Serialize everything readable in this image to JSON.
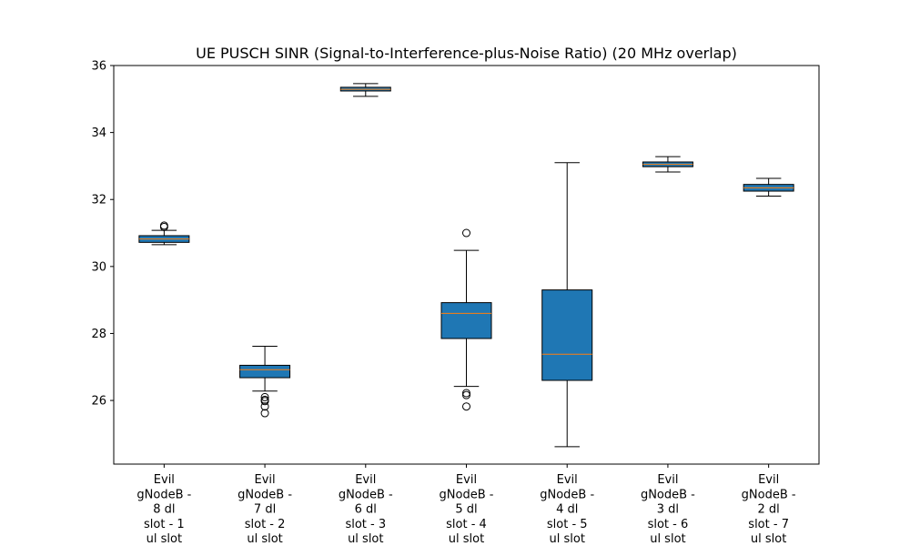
{
  "chart_data": {
    "type": "box",
    "title": "UE PUSCH SINR (Signal-to-Interference-plus-Noise Ratio) (20 MHz overlap)",
    "xlabel": "",
    "ylabel": "",
    "ylim": [
      24.1,
      36
    ],
    "yticks": [
      26,
      28,
      30,
      32,
      34,
      36
    ],
    "grid": false,
    "box_color": "#1f77b4",
    "median_color": "#ff7f0e",
    "categories": [
      [
        "Evil",
        "gNodeB -",
        "8 dl",
        "slot - 1",
        "ul slot"
      ],
      [
        "Evil",
        "gNodeB -",
        "7 dl",
        "slot - 2",
        "ul slot"
      ],
      [
        "Evil",
        "gNodeB -",
        "6 dl",
        "slot - 3",
        "ul slot"
      ],
      [
        "Evil",
        "gNodeB -",
        "5 dl",
        "slot - 4",
        "ul slot"
      ],
      [
        "Evil",
        "gNodeB -",
        "4 dl",
        "slot - 5",
        "ul slot"
      ],
      [
        "Evil",
        "gNodeB -",
        "3 dl",
        "slot - 6",
        "ul slot"
      ],
      [
        "Evil",
        "gNodeB -",
        "2 dl",
        "slot - 7",
        "ul slot"
      ]
    ],
    "boxes": [
      {
        "whislo": 30.65,
        "q1": 30.72,
        "med": 30.82,
        "q3": 30.92,
        "whishi": 31.08,
        "fliers": [
          31.18,
          31.22
        ]
      },
      {
        "whislo": 26.28,
        "q1": 26.68,
        "med": 26.92,
        "q3": 27.05,
        "whishi": 27.62,
        "fliers": [
          26.1,
          26.02,
          25.98,
          25.82,
          25.62
        ]
      },
      {
        "whislo": 35.08,
        "q1": 35.24,
        "med": 35.29,
        "q3": 35.35,
        "whishi": 35.46,
        "fliers": []
      },
      {
        "whislo": 26.42,
        "q1": 27.85,
        "med": 28.6,
        "q3": 28.92,
        "whishi": 30.48,
        "fliers": [
          31.0,
          26.22,
          26.16,
          25.82
        ]
      },
      {
        "whislo": 24.62,
        "q1": 26.6,
        "med": 27.38,
        "q3": 29.3,
        "whishi": 33.1,
        "fliers": []
      },
      {
        "whislo": 32.82,
        "q1": 32.98,
        "med": 33.05,
        "q3": 33.12,
        "whishi": 33.28,
        "fliers": []
      },
      {
        "whislo": 32.1,
        "q1": 32.25,
        "med": 32.35,
        "q3": 32.45,
        "whishi": 32.63,
        "fliers": []
      }
    ]
  }
}
